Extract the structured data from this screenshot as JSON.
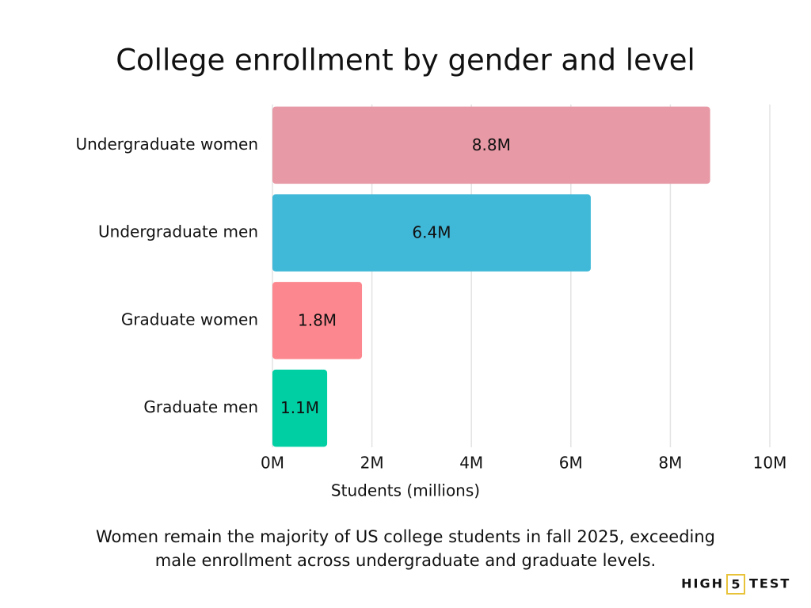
{
  "chart_data": {
    "type": "bar",
    "orientation": "horizontal",
    "title": "College enrollment by gender and level",
    "categories": [
      "Undergraduate women",
      "Undergraduate men",
      "Graduate women",
      "Graduate men"
    ],
    "values": [
      8.8,
      6.4,
      1.8,
      1.1
    ],
    "value_labels": [
      "8.8M",
      "6.4M",
      "1.8M",
      "1.1M"
    ],
    "colors": [
      "#e799a5",
      "#40b8d8",
      "#fd878f",
      "#00cfa4"
    ],
    "xlim": [
      0,
      10
    ],
    "xticks": [
      {
        "value": 0,
        "label": "0M"
      },
      {
        "value": 2,
        "label": "2M"
      },
      {
        "value": 4,
        "label": "4M"
      },
      {
        "value": 6,
        "label": "6M"
      },
      {
        "value": 8,
        "label": "8M"
      },
      {
        "value": 10,
        "label": "10M"
      }
    ],
    "xlabel": "Students (millions)",
    "grid": true,
    "caption": [
      "Women remain the majority of US college students in fall 2025, exceeding",
      "male enrollment across undergraduate and graduate levels."
    ],
    "brand": [
      "HIGH",
      "5",
      "TEST"
    ]
  }
}
